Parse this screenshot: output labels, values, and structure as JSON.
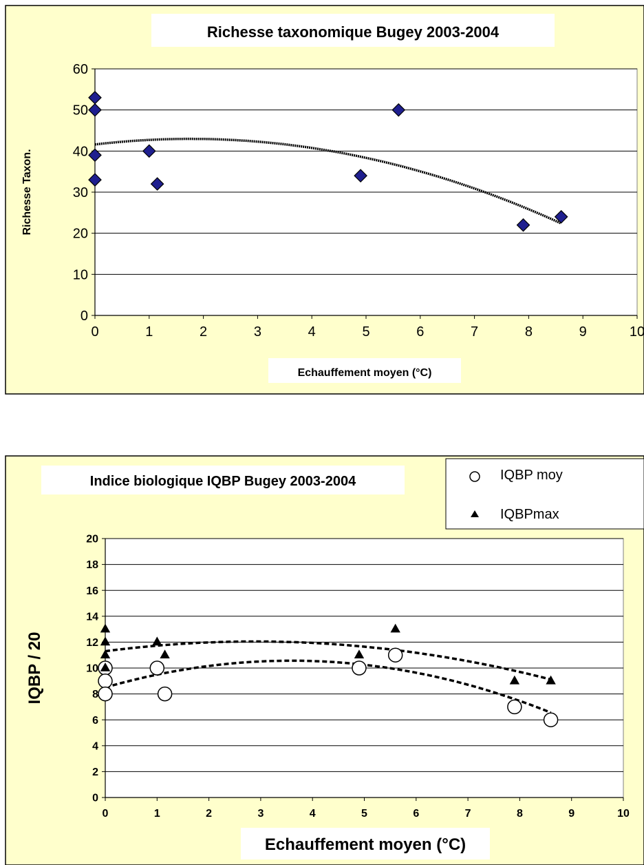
{
  "chart_data": [
    {
      "type": "scatter",
      "title": "Richesse taxonomique Bugey 2003-2004",
      "xlabel": "Echauffement moyen (°C)",
      "ylabel": "Richesse Taxon.",
      "xlim": [
        0,
        10
      ],
      "ylim": [
        0,
        60
      ],
      "x_ticks": [
        "0",
        "1",
        "2",
        "3",
        "4",
        "5",
        "6",
        "7",
        "8",
        "9",
        "10"
      ],
      "y_ticks": [
        "0",
        "10",
        "20",
        "30",
        "40",
        "50",
        "60"
      ],
      "grid": "horizontal",
      "marker_color": "#1f1f8f",
      "series": [
        {
          "marker": "diamond",
          "x": [
            0,
            0,
            0,
            0,
            1.0,
            1.15,
            4.9,
            5.6,
            7.9,
            8.6
          ],
          "y": [
            53,
            50,
            39,
            33,
            40,
            32,
            34,
            50,
            22,
            24
          ]
        }
      ],
      "trendline": {
        "type": "polynomial",
        "coefficients": [
          41.6,
          1.55,
          -0.44
        ]
      }
    },
    {
      "type": "scatter",
      "title": "Indice biologique IQBP Bugey 2003-2004",
      "xlabel": "Echauffement moyen (°C)",
      "ylabel": "IQBP / 20",
      "xlim": [
        0,
        10
      ],
      "ylim": [
        0,
        20
      ],
      "x_ticks": [
        "0",
        "1",
        "2",
        "3",
        "4",
        "5",
        "6",
        "7",
        "8",
        "9",
        "10"
      ],
      "y_ticks": [
        "0",
        "2",
        "4",
        "6",
        "8",
        "10",
        "12",
        "14",
        "16",
        "18",
        "20"
      ],
      "grid": "horizontal",
      "legend": "top-right",
      "series": [
        {
          "name": "IQBP moy",
          "marker": "circle",
          "x": [
            0,
            0,
            0,
            1.0,
            1.15,
            4.9,
            5.6,
            7.9,
            8.6
          ],
          "y": [
            10,
            9,
            8,
            10,
            8,
            10,
            11,
            7,
            6
          ],
          "trendline": {
            "type": "polynomial",
            "coefficients": [
              8.5,
              1.15,
              -0.16
            ]
          }
        },
        {
          "name": "IQBPmax",
          "marker": "triangle",
          "x": [
            0,
            0,
            0,
            0,
            1.0,
            1.15,
            4.9,
            5.6,
            7.9,
            8.6
          ],
          "y": [
            13,
            12,
            11,
            10,
            12,
            11,
            11,
            13,
            9,
            9
          ],
          "trendline": {
            "type": "polynomial",
            "coefficients": [
              11.3,
              0.52,
              -0.09
            ]
          }
        }
      ]
    }
  ]
}
